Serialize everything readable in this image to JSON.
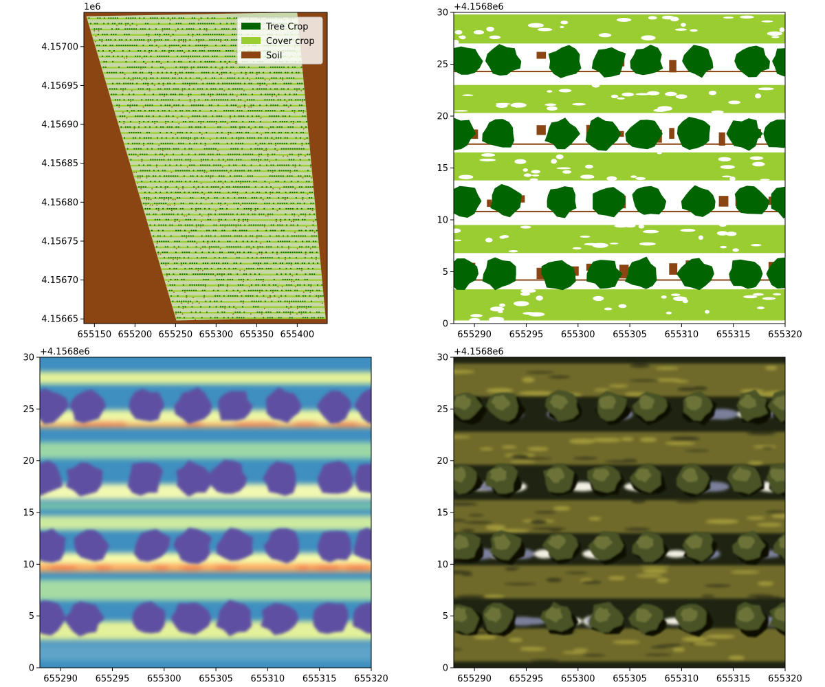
{
  "chart_data": [
    {
      "panel": "top-left",
      "type": "heatmap",
      "title": "",
      "xlabel": "",
      "ylabel": "",
      "xlim": [
        655137,
        655437
      ],
      "ylim": [
        4156644,
        4157044
      ],
      "x_ticks": [
        655150,
        655200,
        655250,
        655300,
        655350,
        655400
      ],
      "x_tick_labels": [
        "655150",
        "655200",
        "655250",
        "655300",
        "655350",
        "655400"
      ],
      "y_ticks": [
        4156650,
        4156700,
        4156750,
        4156800,
        4156850,
        4156900,
        4156950,
        4157000
      ],
      "y_tick_labels": [
        "4.15665",
        "4.15670",
        "4.15675",
        "4.15680",
        "4.15685",
        "4.15690",
        "4.15695",
        "4.15700"
      ],
      "y_offset_text": "1e6",
      "field_polygon_corners": [
        [
          655140,
          4157039
        ],
        [
          655400,
          4157044
        ],
        [
          655435,
          4156652
        ],
        [
          655251,
          4156648
        ]
      ],
      "row_spacing": 7,
      "legend": {
        "placement": "upper right",
        "entries": [
          {
            "label": "Tree Crop",
            "color": "#006400"
          },
          {
            "label": "Cover crop",
            "color": "#9acd32"
          },
          {
            "label": "Soil",
            "color": "#8b4513"
          }
        ]
      }
    },
    {
      "panel": "top-right",
      "type": "heatmap",
      "title": "",
      "classes": [
        {
          "label": "Tree Crop",
          "color": "#006400"
        },
        {
          "label": "Cover crop",
          "color": "#9acd32"
        },
        {
          "label": "Soil",
          "color": "#8b4513"
        }
      ],
      "xlim": [
        655288,
        655320
      ],
      "ylim": [
        0,
        30
      ],
      "x_ticks": [
        655290,
        655295,
        655300,
        655305,
        655310,
        655315,
        655320
      ],
      "x_tick_labels": [
        "655290",
        "655295",
        "655300",
        "655305",
        "655310",
        "655315",
        "655320"
      ],
      "y_ticks": [
        0,
        5,
        10,
        15,
        20,
        25,
        30
      ],
      "y_tick_labels": [
        "0",
        "5",
        "10",
        "15",
        "20",
        "25",
        "30"
      ],
      "y_offset_text": "+4.1568e6",
      "tree_rows_y": [
        4.8,
        11.8,
        18.3,
        25.3
      ],
      "soil_strip_y": [
        4.2,
        10.8,
        17.3,
        24.3
      ],
      "cover_bands": [
        [
          0.3,
          3.3
        ],
        [
          6.8,
          9.5
        ],
        [
          13.8,
          16.5
        ],
        [
          20.3,
          23.0
        ],
        [
          27.0,
          29.8
        ]
      ]
    },
    {
      "panel": "bottom-left",
      "type": "heatmap",
      "title": "",
      "colormap": "Spectral_r",
      "xlim": [
        655288,
        655320
      ],
      "ylim": [
        0,
        30
      ],
      "x_ticks": [
        655290,
        655295,
        655300,
        655305,
        655310,
        655315,
        655320
      ],
      "x_tick_labels": [
        "655290",
        "655295",
        "655300",
        "655305",
        "655310",
        "655315",
        "655320"
      ],
      "y_ticks": [
        0,
        5,
        10,
        15,
        20,
        25,
        30
      ],
      "y_tick_labels": [
        "0",
        "5",
        "10",
        "15",
        "20",
        "25",
        "30"
      ],
      "y_offset_text": "+4.1568e6",
      "tree_rows_y": [
        4.8,
        11.8,
        18.3,
        25.3
      ],
      "peak_bands_y": [
        9.7,
        23.6
      ]
    },
    {
      "panel": "bottom-right",
      "type": "heatmap",
      "title": "",
      "xlim": [
        655288,
        655320
      ],
      "ylim": [
        0,
        30
      ],
      "x_ticks": [
        655290,
        655295,
        655300,
        655305,
        655310,
        655315,
        655320
      ],
      "x_tick_labels": [
        "655290",
        "655295",
        "655300",
        "655305",
        "655310",
        "655315",
        "655320"
      ],
      "y_ticks": [
        0,
        5,
        10,
        15,
        20,
        25,
        30
      ],
      "y_tick_labels": [
        "0",
        "5",
        "10",
        "15",
        "20",
        "25",
        "30"
      ],
      "y_offset_text": "+4.1568e6",
      "tree_rows_y": [
        4.8,
        11.8,
        18.3,
        25.3
      ],
      "bright_soil_y": [
        4.5,
        11.0,
        17.5,
        24.5
      ]
    }
  ],
  "colors": {
    "tree": "#006400",
    "cover": "#9acd32",
    "soil": "#8b4513",
    "heat_low": "#5e4fa2",
    "heat_mid": "#a0d7a4",
    "heat_high": "#f46d43",
    "rgb_dark": "#1f2412",
    "rgb_canopy": "#4a5226",
    "rgb_grass": "#6f6a2c"
  }
}
